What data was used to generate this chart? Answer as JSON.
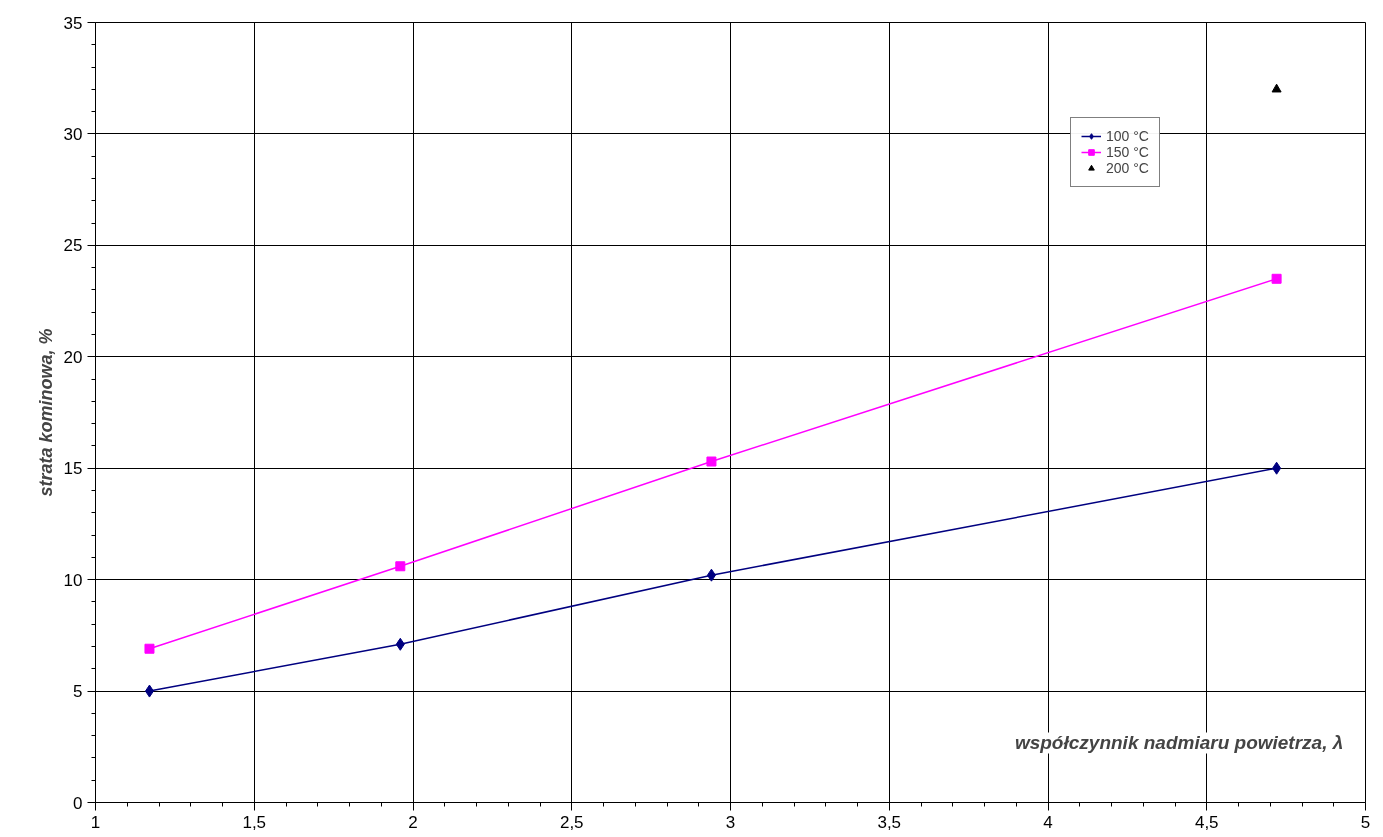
{
  "chart_data": {
    "type": "line",
    "xlabel": "współczynnik nadmiaru powietrza, λ",
    "ylabel": "strata kominowa, %",
    "xlim": [
      1,
      5
    ],
    "xticks": [
      {
        "value": 1,
        "label": "1"
      },
      {
        "value": 1.5,
        "label": "1,5"
      },
      {
        "value": 2,
        "label": "2"
      },
      {
        "value": 2.5,
        "label": "2,5"
      },
      {
        "value": 3,
        "label": "3"
      },
      {
        "value": 3.5,
        "label": "3,5"
      },
      {
        "value": 4,
        "label": "4"
      },
      {
        "value": 4.5,
        "label": "4,5"
      },
      {
        "value": 5,
        "label": "5"
      }
    ],
    "ylim": [
      0,
      35
    ],
    "yticks": [
      0,
      5,
      10,
      15,
      20,
      25,
      30,
      35
    ],
    "grid": true,
    "legend": "top right",
    "series": [
      {
        "name": "100 °C",
        "color": "#000080",
        "marker": "diamond",
        "x": [
          1.17,
          1.96,
          2.94,
          4.72
        ],
        "values": [
          5.0,
          7.1,
          10.2,
          15.0
        ]
      },
      {
        "name": "150 °C",
        "color": "#ff00ff",
        "marker": "square",
        "x": [
          1.17,
          1.96,
          2.94,
          4.72
        ],
        "values": [
          6.9,
          10.6,
          15.3,
          23.5
        ]
      },
      {
        "name": "200 °C",
        "type": "scatter",
        "color": "#000000",
        "marker": "triangle",
        "x": [
          4.72
        ],
        "values": [
          32.0
        ]
      }
    ]
  }
}
